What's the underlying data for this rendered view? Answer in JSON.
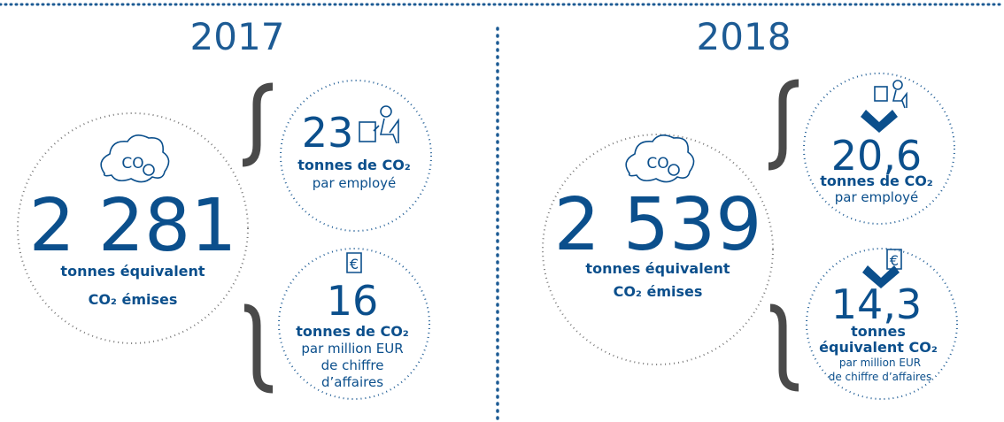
{
  "panels": [
    {
      "year": "2017",
      "total": {
        "value": "2 281",
        "lines": [
          "tonnes équivalent",
          "CO₂ émises"
        ]
      },
      "per_employee": {
        "value": "23",
        "lines": [
          "tonnes de CO₂",
          "par employé"
        ]
      },
      "per_revenue": {
        "value": "16",
        "lines": [
          "tonnes de CO₂",
          "par million EUR",
          "de chiffre",
          "d’affaires"
        ]
      }
    },
    {
      "year": "2018",
      "total": {
        "value": "2 539",
        "lines": [
          "tonnes équivalent",
          "CO₂ émises"
        ]
      },
      "per_employee": {
        "value": "20,6",
        "lines": [
          "tonnes de CO₂",
          "par employé"
        ]
      },
      "per_revenue": {
        "value": "14,3",
        "lines": [
          "tonnes",
          "équivalent CO₂",
          "par million EUR",
          "de chiffre d’affaires"
        ]
      }
    }
  ]
}
